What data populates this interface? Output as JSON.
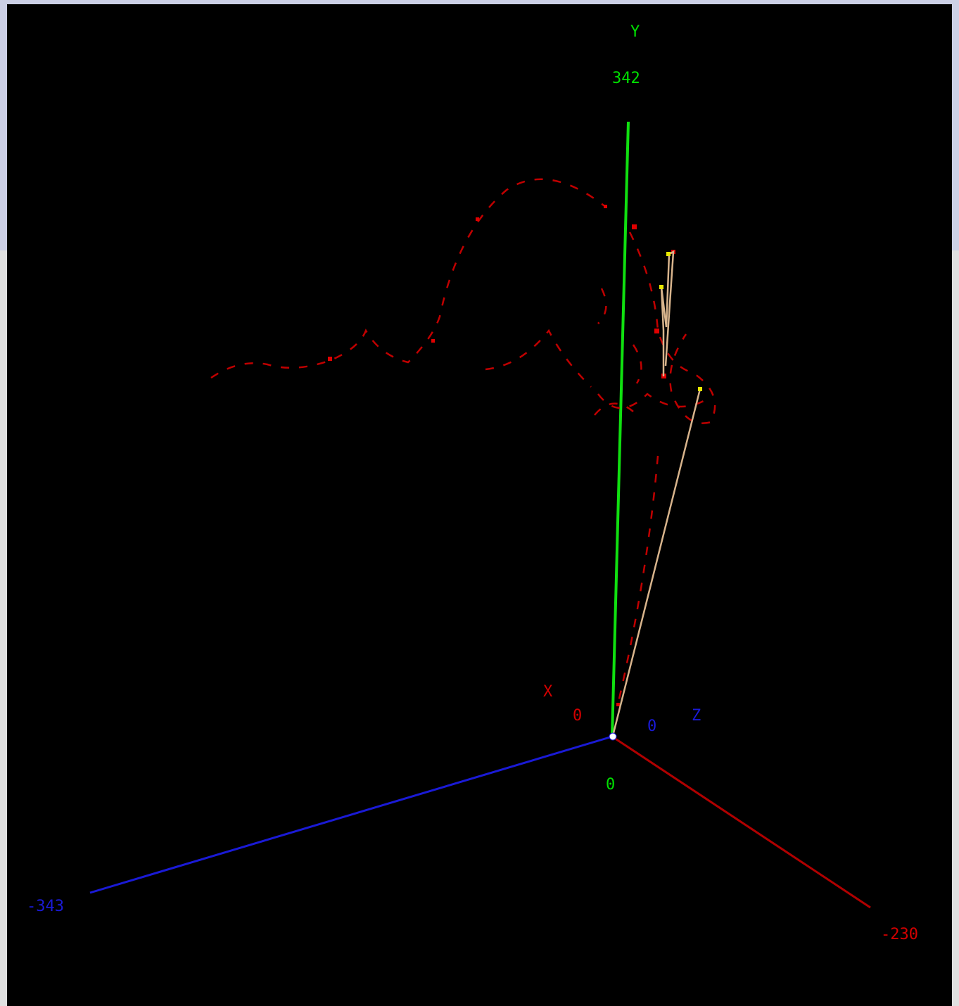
{
  "axes": {
    "x": {
      "name": "X",
      "origin_label": "0",
      "end_label": "-230",
      "color": "#d40000"
    },
    "y": {
      "name": "Y",
      "origin_label": "0",
      "end_label": "342",
      "color": "#00e000"
    },
    "z": {
      "name": "Z",
      "origin_label": "0",
      "end_label": "-343",
      "color": "#1a1ad6"
    }
  },
  "colors": {
    "background": "#000000",
    "trajectory": "#c80000",
    "link": "#d8b48c",
    "joint": "#e8e800",
    "origin_marker": "#ffffff"
  }
}
